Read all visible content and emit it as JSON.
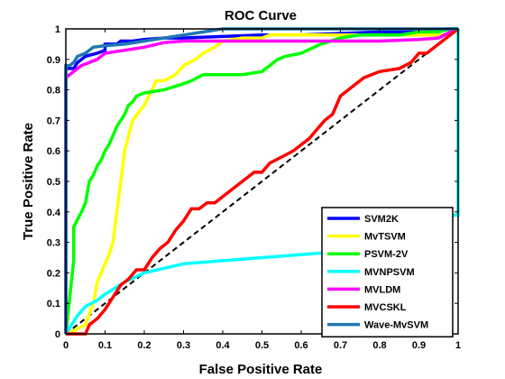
{
  "chart_data": {
    "type": "line",
    "title": "ROC Curve",
    "xlabel": "False Positive Rate",
    "ylabel": "True Positive Rate",
    "xlim": [
      0,
      1
    ],
    "ylim": [
      0,
      1
    ],
    "xticks": [
      0,
      0.1,
      0.2,
      0.3,
      0.4,
      0.5,
      0.6,
      0.7,
      0.8,
      0.9,
      1
    ],
    "yticks": [
      0,
      0.1,
      0.2,
      0.3,
      0.4,
      0.5,
      0.6,
      0.7,
      0.8,
      0.9,
      1
    ],
    "xtick_labels": [
      "0",
      "0.1",
      "0.2",
      "0.3",
      "0.4",
      "0.5",
      "0.6",
      "0.7",
      "0.8",
      "0.9",
      "1"
    ],
    "ytick_labels": [
      "0",
      "0.1",
      "0.2",
      "0.3",
      "0.4",
      "0.5",
      "0.6",
      "0.7",
      "0.8",
      "0.9",
      "1"
    ],
    "grid": false,
    "legend_position": "bottom-right",
    "reference_line": {
      "x": [
        0,
        1
      ],
      "y": [
        0,
        1
      ],
      "color": "#000000",
      "style": "dashed"
    },
    "series": [
      {
        "name": "SVM2K",
        "color": "#0000ff",
        "x": [
          0,
          0,
          0.02,
          0.03,
          0.05,
          0.08,
          0.1,
          0.1,
          0.13,
          0.14,
          0.17,
          0.2,
          0.25,
          0.3,
          0.4,
          0.5,
          0.6,
          0.7,
          0.8,
          0.9,
          0.97,
          1
        ],
        "y": [
          0,
          0.87,
          0.87,
          0.89,
          0.91,
          0.92,
          0.93,
          0.95,
          0.95,
          0.96,
          0.96,
          0.965,
          0.97,
          0.97,
          0.975,
          0.98,
          0.98,
          0.985,
          0.99,
          0.99,
          1,
          1
        ]
      },
      {
        "name": "MvTSVM",
        "color": "#ffff00",
        "x": [
          0,
          0.02,
          0.05,
          0.07,
          0.08,
          0.09,
          0.1,
          0.11,
          0.12,
          0.13,
          0.14,
          0.15,
          0.16,
          0.17,
          0.2,
          0.22,
          0.23,
          0.25,
          0.28,
          0.3,
          0.33,
          0.35,
          0.38,
          0.4,
          0.45,
          0.5,
          0.52,
          0.55,
          0.6,
          0.7,
          0.8,
          0.9,
          0.98,
          0.99,
          1
        ],
        "y": [
          0,
          0.01,
          0.03,
          0.1,
          0.17,
          0.2,
          0.23,
          0.26,
          0.3,
          0.4,
          0.5,
          0.6,
          0.65,
          0.7,
          0.75,
          0.8,
          0.83,
          0.83,
          0.85,
          0.88,
          0.9,
          0.92,
          0.94,
          0.96,
          0.97,
          0.97,
          0.98,
          0.98,
          0.98,
          0.98,
          0.98,
          0.98,
          0.98,
          0.99,
          1
        ]
      },
      {
        "name": "PSVM-2V",
        "color": "#00ff00",
        "x": [
          0,
          0.02,
          0.02,
          0.04,
          0.05,
          0.06,
          0.07,
          0.08,
          0.09,
          0.1,
          0.11,
          0.12,
          0.13,
          0.14,
          0.15,
          0.16,
          0.17,
          0.18,
          0.2,
          0.25,
          0.3,
          0.32,
          0.35,
          0.4,
          0.45,
          0.5,
          0.52,
          0.54,
          0.56,
          0.6,
          0.65,
          0.7,
          0.75,
          0.8,
          0.85,
          0.9,
          0.95,
          0.98,
          1
        ],
        "y": [
          0,
          0.24,
          0.35,
          0.4,
          0.43,
          0.5,
          0.52,
          0.55,
          0.57,
          0.6,
          0.62,
          0.65,
          0.68,
          0.7,
          0.72,
          0.75,
          0.76,
          0.78,
          0.79,
          0.8,
          0.82,
          0.83,
          0.85,
          0.85,
          0.85,
          0.86,
          0.88,
          0.9,
          0.91,
          0.92,
          0.95,
          0.97,
          0.98,
          0.98,
          0.98,
          0.99,
          0.99,
          1,
          1
        ]
      },
      {
        "name": "MVNPSVM",
        "color": "#00ffff",
        "x": [
          0,
          0.02,
          0.03,
          0.05,
          0.08,
          0.1,
          0.15,
          0.2,
          0.3,
          0.4,
          0.5,
          0.6,
          0.7,
          0.75,
          0.8,
          0.85,
          0.9,
          0.95,
          0.98,
          0.99,
          1,
          1
        ],
        "y": [
          0,
          0.04,
          0.06,
          0.09,
          0.11,
          0.13,
          0.17,
          0.2,
          0.23,
          0.24,
          0.25,
          0.26,
          0.27,
          0.28,
          0.29,
          0.32,
          0.35,
          0.38,
          0.38,
          0.39,
          0.39,
          1
        ]
      },
      {
        "name": "MVLDM",
        "color": "#ff00ff",
        "x": [
          0,
          0,
          0.02,
          0.04,
          0.06,
          0.08,
          0.1,
          0.15,
          0.2,
          0.25,
          0.3,
          0.4,
          0.5,
          0.6,
          0.7,
          0.8,
          0.9,
          0.95,
          0.98,
          1
        ],
        "y": [
          0,
          0.84,
          0.86,
          0.88,
          0.89,
          0.9,
          0.92,
          0.93,
          0.94,
          0.955,
          0.96,
          0.96,
          0.96,
          0.96,
          0.96,
          0.96,
          0.965,
          0.97,
          0.99,
          1
        ]
      },
      {
        "name": "MVCSKL",
        "color": "#ff0000",
        "x": [
          0,
          0.05,
          0.06,
          0.08,
          0.1,
          0.12,
          0.14,
          0.16,
          0.18,
          0.2,
          0.22,
          0.24,
          0.26,
          0.28,
          0.3,
          0.32,
          0.34,
          0.36,
          0.38,
          0.4,
          0.42,
          0.45,
          0.48,
          0.5,
          0.52,
          0.55,
          0.58,
          0.6,
          0.62,
          0.64,
          0.66,
          0.68,
          0.7,
          0.72,
          0.74,
          0.76,
          0.8,
          0.85,
          0.88,
          0.9,
          0.92,
          0.94,
          0.96,
          0.98,
          1
        ],
        "y": [
          0,
          0,
          0.03,
          0.05,
          0.08,
          0.12,
          0.16,
          0.18,
          0.21,
          0.21,
          0.25,
          0.28,
          0.3,
          0.34,
          0.37,
          0.41,
          0.41,
          0.43,
          0.43,
          0.45,
          0.47,
          0.5,
          0.53,
          0.53,
          0.56,
          0.58,
          0.6,
          0.62,
          0.64,
          0.67,
          0.7,
          0.72,
          0.78,
          0.8,
          0.82,
          0.84,
          0.86,
          0.87,
          0.89,
          0.92,
          0.92,
          0.94,
          0.96,
          0.98,
          1
        ]
      },
      {
        "name": "Wave-MvSVM",
        "color": "#1f77b4",
        "x": [
          0,
          0,
          0.01,
          0.02,
          0.03,
          0.05,
          0.07,
          0.1,
          0.15,
          0.2,
          0.25,
          0.3,
          0.35,
          0.4,
          0.5,
          0.6,
          0.7,
          0.8,
          0.9,
          0.95,
          1
        ],
        "y": [
          0,
          0.88,
          0.88,
          0.89,
          0.91,
          0.92,
          0.94,
          0.945,
          0.95,
          0.96,
          0.97,
          0.98,
          0.99,
          1,
          1,
          1,
          1,
          1,
          1,
          1,
          1
        ]
      }
    ]
  }
}
